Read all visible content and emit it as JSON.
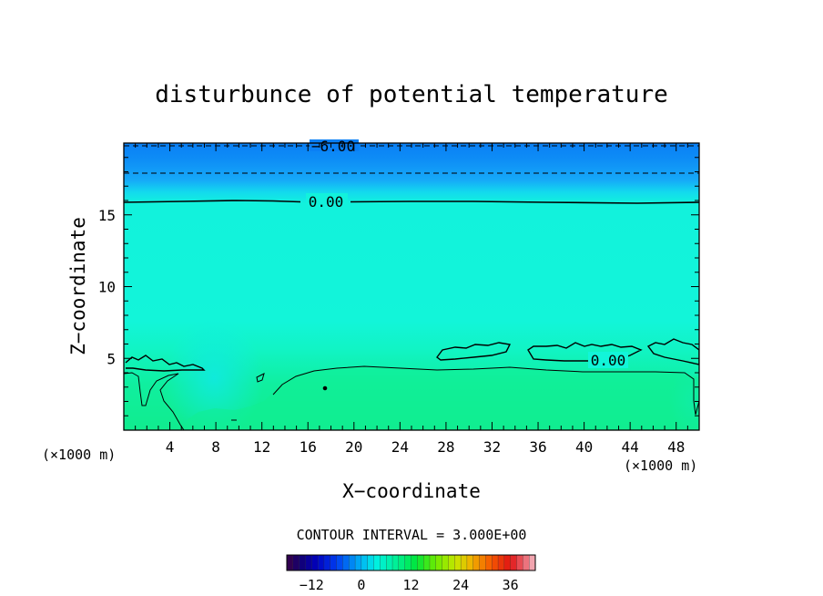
{
  "chart_data": {
    "type": "contour",
    "title": "disturbunce of potential temperature",
    "xlabel": "X−coordinate",
    "ylabel": "Z−coordinate",
    "x_unit_label": "(×1000 m)",
    "y_unit_label": "(×1000 m)",
    "xlim": [
      0,
      50
    ],
    "ylim": [
      0,
      20
    ],
    "x_ticks": [
      4,
      8,
      12,
      16,
      20,
      24,
      28,
      32,
      36,
      40,
      44,
      48
    ],
    "y_ticks": [
      5,
      10,
      15
    ],
    "contour_interval_text": "CONTOUR INTERVAL = 3.000E+00",
    "contour_labels": [
      {
        "text": "−6.00",
        "x": 19,
        "z": 19.7
      },
      {
        "text": "0.00",
        "x": 17.5,
        "z": 15.9
      },
      {
        "text": "0.00",
        "x": 42,
        "z": 4.9
      }
    ],
    "colorbar": {
      "min": -18,
      "max": 42,
      "ticks": [
        -12,
        0,
        12,
        24,
        36
      ],
      "tick_labels": [
        "−12",
        "0",
        "12",
        "24",
        "36"
      ]
    },
    "colors": {
      "upper_blue": "#0a7ff5",
      "mid_blue": "#1fb2f8",
      "field_cyan": "#12f5d9",
      "lower_green": "#10ee9a",
      "contour_line": "#000000"
    }
  }
}
